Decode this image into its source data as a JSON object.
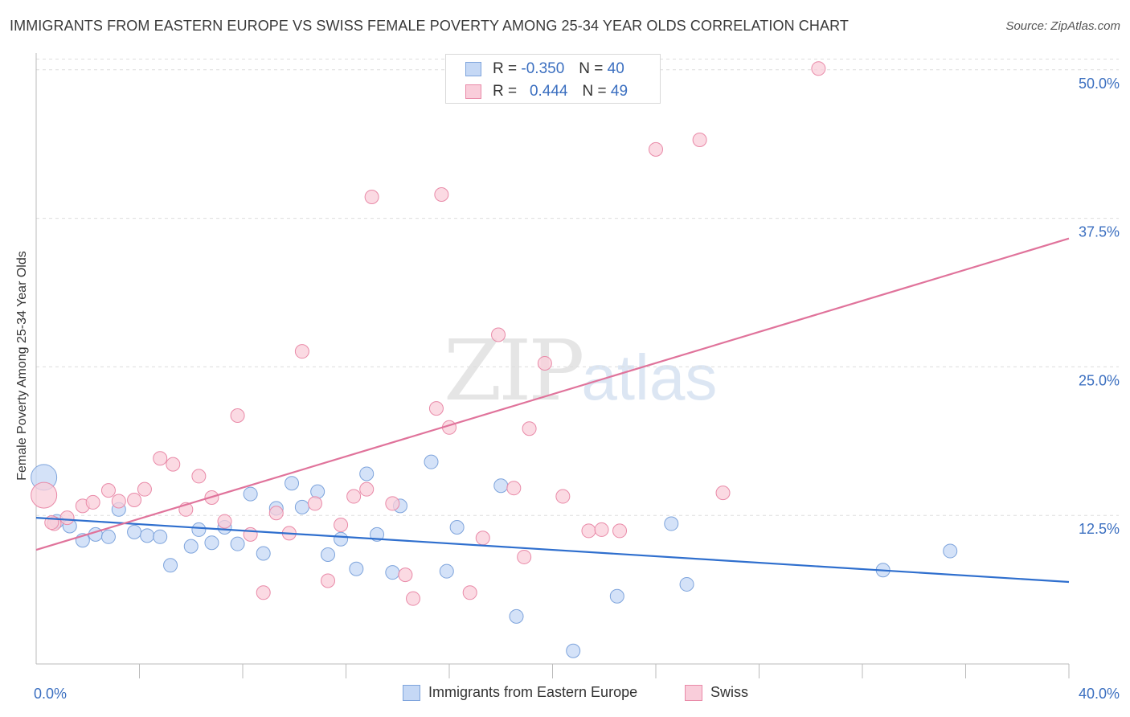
{
  "title": "IMMIGRANTS FROM EASTERN EUROPE VS SWISS FEMALE POVERTY AMONG 25-34 YEAR OLDS CORRELATION CHART",
  "source": "Source: ZipAtlas.com",
  "watermark": {
    "zip": "ZIP",
    "atlas": "atlas"
  },
  "legend_top": {
    "rows": [
      {
        "r_label": "R =",
        "r_value": "-0.350",
        "n_label": "N =",
        "n_value": "40"
      },
      {
        "r_label": "R =",
        "r_value": "0.444",
        "n_label": "N =",
        "n_value": "49"
      }
    ]
  },
  "colors": {
    "blue_fill": "#c5d8f5",
    "blue_stroke": "#7ea4dc",
    "blue_line": "#2f6fce",
    "pink_fill": "#f9cdda",
    "pink_stroke": "#e98aa8",
    "pink_line": "#e0739b",
    "grid": "#dddddd",
    "tick_text": "#3b6fc0"
  },
  "chart_data": {
    "type": "scatter",
    "title": "IMMIGRANTS FROM EASTERN EUROPE VS SWISS FEMALE POVERTY AMONG 25-34 YEAR OLDS CORRELATION CHART",
    "xlabel": "",
    "ylabel": "Female Poverty Among 25-34 Year Olds",
    "xlim": [
      0,
      40
    ],
    "ylim": [
      0,
      51
    ],
    "x_tick_labels": [
      {
        "value": 0,
        "label": "0.0%"
      },
      {
        "value": 40,
        "label": "40.0%"
      }
    ],
    "x_minor_ticks": [
      4,
      8,
      12,
      16,
      20,
      24,
      28,
      32,
      36,
      40
    ],
    "y_ticks": [
      {
        "value": 12.5,
        "label": "12.5%"
      },
      {
        "value": 25,
        "label": "25.0%"
      },
      {
        "value": 37.5,
        "label": "37.5%"
      },
      {
        "value": 50,
        "label": "50.0%"
      }
    ],
    "legend": "bottom-center",
    "series": [
      {
        "name": "Immigrants from Eastern Europe",
        "color": "blue",
        "trend": {
          "x": [
            0,
            40
          ],
          "y": [
            12.3,
            6.9
          ]
        },
        "points": [
          {
            "x": 0.3,
            "y": 15.7,
            "size": "large"
          },
          {
            "x": 0.8,
            "y": 12.0
          },
          {
            "x": 1.3,
            "y": 11.6
          },
          {
            "x": 1.8,
            "y": 10.4
          },
          {
            "x": 2.3,
            "y": 10.9
          },
          {
            "x": 2.8,
            "y": 10.7
          },
          {
            "x": 3.2,
            "y": 13.0
          },
          {
            "x": 3.8,
            "y": 11.1
          },
          {
            "x": 4.3,
            "y": 10.8
          },
          {
            "x": 4.8,
            "y": 10.7
          },
          {
            "x": 5.2,
            "y": 8.3
          },
          {
            "x": 6.0,
            "y": 9.9
          },
          {
            "x": 6.3,
            "y": 11.3
          },
          {
            "x": 6.8,
            "y": 10.2
          },
          {
            "x": 7.3,
            "y": 11.5
          },
          {
            "x": 7.8,
            "y": 10.1
          },
          {
            "x": 8.3,
            "y": 14.3
          },
          {
            "x": 8.8,
            "y": 9.3
          },
          {
            "x": 9.3,
            "y": 13.1
          },
          {
            "x": 9.9,
            "y": 15.2
          },
          {
            "x": 10.3,
            "y": 13.2
          },
          {
            "x": 10.9,
            "y": 14.5
          },
          {
            "x": 11.3,
            "y": 9.2
          },
          {
            "x": 11.8,
            "y": 10.5
          },
          {
            "x": 12.4,
            "y": 8.0
          },
          {
            "x": 12.8,
            "y": 16.0
          },
          {
            "x": 13.2,
            "y": 10.9
          },
          {
            "x": 13.8,
            "y": 7.7
          },
          {
            "x": 14.1,
            "y": 13.3
          },
          {
            "x": 15.3,
            "y": 17.0
          },
          {
            "x": 15.9,
            "y": 7.8
          },
          {
            "x": 16.3,
            "y": 11.5
          },
          {
            "x": 18.0,
            "y": 15.0
          },
          {
            "x": 18.6,
            "y": 4.0
          },
          {
            "x": 20.8,
            "y": 1.1
          },
          {
            "x": 22.5,
            "y": 5.7
          },
          {
            "x": 24.6,
            "y": 11.8
          },
          {
            "x": 25.2,
            "y": 6.7
          },
          {
            "x": 32.8,
            "y": 7.9
          },
          {
            "x": 35.4,
            "y": 9.5
          }
        ]
      },
      {
        "name": "Swiss",
        "color": "pink",
        "trend": {
          "x": [
            0,
            40
          ],
          "y": [
            9.6,
            35.8
          ]
        },
        "points": [
          {
            "x": 0.3,
            "y": 14.2,
            "size": "large"
          },
          {
            "x": 0.7,
            "y": 11.8
          },
          {
            "x": 1.2,
            "y": 12.3
          },
          {
            "x": 1.8,
            "y": 13.3
          },
          {
            "x": 2.2,
            "y": 13.6
          },
          {
            "x": 2.8,
            "y": 14.6
          },
          {
            "x": 3.2,
            "y": 13.7
          },
          {
            "x": 3.8,
            "y": 13.8
          },
          {
            "x": 4.2,
            "y": 14.7
          },
          {
            "x": 4.8,
            "y": 17.3
          },
          {
            "x": 5.3,
            "y": 16.8
          },
          {
            "x": 5.8,
            "y": 13.0
          },
          {
            "x": 6.3,
            "y": 15.8
          },
          {
            "x": 6.8,
            "y": 14.0
          },
          {
            "x": 7.3,
            "y": 12.0
          },
          {
            "x": 7.8,
            "y": 20.9
          },
          {
            "x": 8.3,
            "y": 10.9
          },
          {
            "x": 8.8,
            "y": 6.0
          },
          {
            "x": 9.3,
            "y": 12.7
          },
          {
            "x": 9.8,
            "y": 11.0
          },
          {
            "x": 10.3,
            "y": 26.3
          },
          {
            "x": 10.8,
            "y": 13.5
          },
          {
            "x": 11.3,
            "y": 7.0
          },
          {
            "x": 11.8,
            "y": 11.7
          },
          {
            "x": 12.3,
            "y": 14.1
          },
          {
            "x": 12.8,
            "y": 14.7
          },
          {
            "x": 13.0,
            "y": 39.3
          },
          {
            "x": 13.8,
            "y": 13.5
          },
          {
            "x": 14.3,
            "y": 7.5
          },
          {
            "x": 14.6,
            "y": 5.5
          },
          {
            "x": 15.5,
            "y": 21.5
          },
          {
            "x": 15.7,
            "y": 39.5
          },
          {
            "x": 16.0,
            "y": 19.9
          },
          {
            "x": 16.8,
            "y": 6.0
          },
          {
            "x": 17.3,
            "y": 10.6
          },
          {
            "x": 17.9,
            "y": 27.7
          },
          {
            "x": 18.5,
            "y": 14.8
          },
          {
            "x": 18.9,
            "y": 9.0
          },
          {
            "x": 19.1,
            "y": 19.8
          },
          {
            "x": 19.7,
            "y": 25.3
          },
          {
            "x": 20.4,
            "y": 14.1
          },
          {
            "x": 21.4,
            "y": 11.2
          },
          {
            "x": 21.9,
            "y": 11.3
          },
          {
            "x": 22.6,
            "y": 11.2
          },
          {
            "x": 24.0,
            "y": 43.3
          },
          {
            "x": 25.7,
            "y": 44.1
          },
          {
            "x": 26.6,
            "y": 14.4
          },
          {
            "x": 30.3,
            "y": 50.1
          },
          {
            "x": 0.6,
            "y": 11.9
          }
        ]
      }
    ]
  },
  "legend_bottom": {
    "items": [
      {
        "label": "Immigrants from Eastern Europe"
      },
      {
        "label": "Swiss"
      }
    ]
  }
}
